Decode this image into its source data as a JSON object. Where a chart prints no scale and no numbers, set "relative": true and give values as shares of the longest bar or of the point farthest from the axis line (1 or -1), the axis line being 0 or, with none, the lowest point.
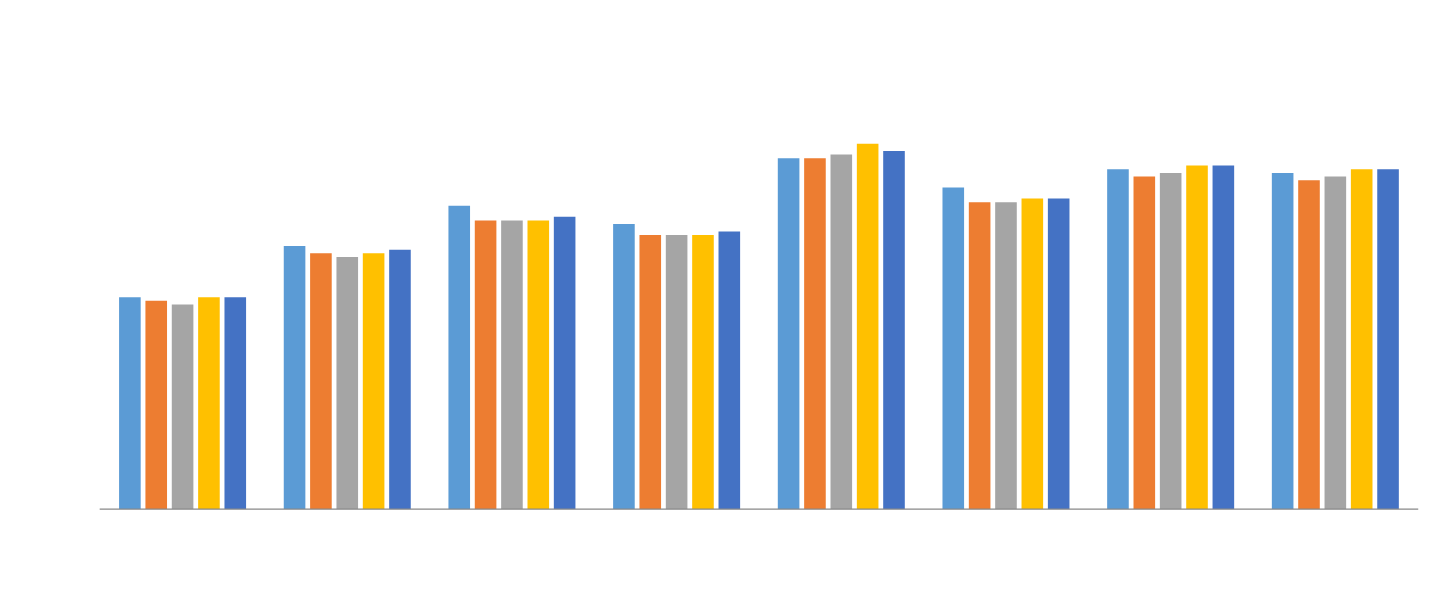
{
  "chart_data": {
    "type": "bar",
    "relative": true,
    "categories": [
      null,
      null,
      null,
      null,
      null,
      null,
      null,
      null
    ],
    "series": [
      {
        "color": "#5b9bd5",
        "values": [
          0.58,
          0.72,
          0.83,
          0.78,
          0.96,
          0.88,
          0.93,
          0.92
        ]
      },
      {
        "color": "#ed7d31",
        "values": [
          0.57,
          0.7,
          0.79,
          0.75,
          0.96,
          0.84,
          0.91,
          0.9
        ]
      },
      {
        "color": "#a5a5a5",
        "values": [
          0.56,
          0.69,
          0.79,
          0.75,
          0.97,
          0.84,
          0.92,
          0.91
        ]
      },
      {
        "color": "#ffc000",
        "values": [
          0.58,
          0.7,
          0.79,
          0.75,
          1.0,
          0.85,
          0.94,
          0.93
        ]
      },
      {
        "color": "#4472c4",
        "values": [
          0.58,
          0.71,
          0.8,
          0.76,
          0.98,
          0.85,
          0.94,
          0.93
        ]
      }
    ]
  }
}
